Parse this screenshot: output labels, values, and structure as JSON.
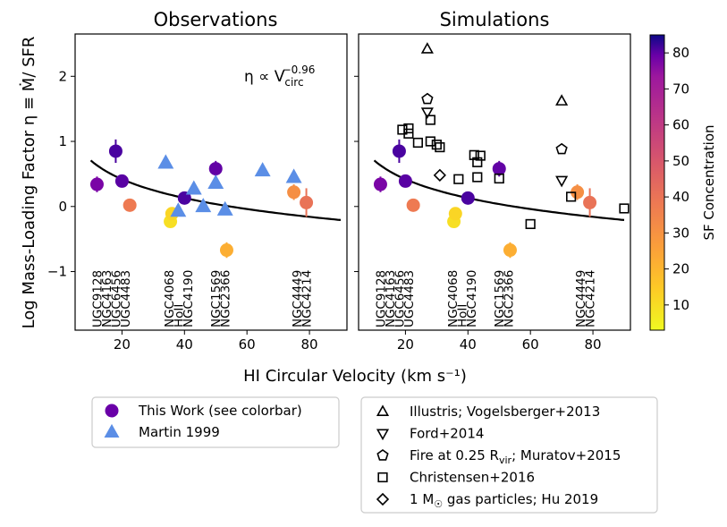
{
  "figure": {
    "ylabel": "Log Mass-Loading Factor η ≡ Ṁ/ SFR",
    "xlabel": "HI Circular Velocity (km s⁻¹)",
    "colorbar_label": "SF Concentration",
    "scaling_relation": "η ∝ V_circ^−0.96"
  },
  "chart_data": [
    {
      "type": "scatter",
      "title": "Observations",
      "xlim": [
        5,
        92
      ],
      "ylim": [
        -1.9,
        2.65
      ],
      "xticks": [
        20,
        40,
        60,
        80
      ],
      "yticks": [
        -1,
        0,
        1,
        2
      ],
      "annotation": "η ∝ V_circ^−0.96",
      "fit_line": {
        "relation": "eta proportional to Vcirc^-0.96",
        "anchor_x": 40,
        "anchor_y": 0.13,
        "x_range": [
          10,
          90
        ]
      },
      "series": [
        {
          "name": "This Work (see colorbar)",
          "marker": "circle",
          "points": [
            {
              "x": 12,
              "y": 0.34,
              "c": 65,
              "err": 0.12
            },
            {
              "x": 18,
              "y": 0.85,
              "c": 75,
              "err": 0.18
            },
            {
              "x": 20,
              "y": 0.39,
              "c": 72,
              "err": 0.05
            },
            {
              "x": 22.5,
              "y": 0.02,
              "c": 30,
              "err": 0.04
            },
            {
              "x": 35.5,
              "y": -0.23,
              "c": 8,
              "err": 0.08
            },
            {
              "x": 36,
              "y": -0.11,
              "c": 10,
              "err": 0.06
            },
            {
              "x": 40,
              "y": 0.13,
              "c": 75,
              "err": 0.04
            },
            {
              "x": 50,
              "y": 0.58,
              "c": 70,
              "err": 0.12
            },
            {
              "x": 53.5,
              "y": -0.67,
              "c": 18,
              "err": 0.12
            },
            {
              "x": 75,
              "y": 0.22,
              "c": 25,
              "err": 0.12
            },
            {
              "x": 79,
              "y": 0.06,
              "c": 32,
              "err": 0.22
            }
          ]
        },
        {
          "name": "Martin 1999",
          "marker": "triangle",
          "color": "#5b8ee6",
          "points": [
            {
              "x": 34,
              "y": 0.67
            },
            {
              "x": 38,
              "y": -0.07
            },
            {
              "x": 43,
              "y": 0.27
            },
            {
              "x": 46,
              "y": 0.0
            },
            {
              "x": 50,
              "y": 0.36
            },
            {
              "x": 53,
              "y": -0.05
            },
            {
              "x": 65,
              "y": 0.55
            },
            {
              "x": 75,
              "y": 0.45
            }
          ]
        }
      ],
      "galaxy_labels": [
        {
          "x": 12,
          "label": "UGC9128"
        },
        {
          "x": 15,
          "label": "NGC4163"
        },
        {
          "x": 18,
          "label": "UGC6456"
        },
        {
          "x": 21,
          "label": "UGC4483"
        },
        {
          "x": 35,
          "label": "NGC4068"
        },
        {
          "x": 38,
          "label": "HoII"
        },
        {
          "x": 41,
          "label": "NGC4190"
        },
        {
          "x": 50,
          "label": "NGC1569"
        },
        {
          "x": 53,
          "label": "NGC2366"
        },
        {
          "x": 76,
          "label": "NGC4449"
        },
        {
          "x": 79,
          "label": "NGC4214"
        }
      ]
    },
    {
      "type": "scatter",
      "title": "Simulations",
      "xlim": [
        5,
        92
      ],
      "ylim": [
        -1.9,
        2.65
      ],
      "xticks": [
        20,
        40,
        60,
        80
      ],
      "yticks": [
        -1,
        0,
        1,
        2
      ],
      "fit_line": {
        "relation": "eta proportional to Vcirc^-0.96",
        "anchor_x": 40,
        "anchor_y": 0.13,
        "x_range": [
          10,
          90
        ]
      },
      "series": [
        {
          "name": "This Work (see colorbar)",
          "marker": "circle",
          "points": [
            {
              "x": 12,
              "y": 0.34,
              "c": 65,
              "err": 0.12
            },
            {
              "x": 18,
              "y": 0.85,
              "c": 75,
              "err": 0.18
            },
            {
              "x": 20,
              "y": 0.39,
              "c": 72,
              "err": 0.05
            },
            {
              "x": 22.5,
              "y": 0.02,
              "c": 30,
              "err": 0.04
            },
            {
              "x": 35.5,
              "y": -0.23,
              "c": 8,
              "err": 0.08
            },
            {
              "x": 36,
              "y": -0.11,
              "c": 10,
              "err": 0.06
            },
            {
              "x": 40,
              "y": 0.13,
              "c": 75,
              "err": 0.04
            },
            {
              "x": 50,
              "y": 0.58,
              "c": 70,
              "err": 0.12
            },
            {
              "x": 53.5,
              "y": -0.67,
              "c": 18,
              "err": 0.12
            },
            {
              "x": 75,
              "y": 0.22,
              "c": 25,
              "err": 0.12
            },
            {
              "x": 79,
              "y": 0.06,
              "c": 32,
              "err": 0.22
            }
          ]
        },
        {
          "name": "Illustris; Vogelsberger+2013",
          "marker": "triangle-up",
          "points": [
            {
              "x": 27,
              "y": 2.42
            },
            {
              "x": 70,
              "y": 1.62
            }
          ]
        },
        {
          "name": "Ford+2014",
          "marker": "triangle-down",
          "points": [
            {
              "x": 27,
              "y": 1.45
            },
            {
              "x": 70,
              "y": 0.4
            }
          ]
        },
        {
          "name": "Fire at 0.25 R_vir; Muratov+2015",
          "marker": "pentagon",
          "points": [
            {
              "x": 27,
              "y": 1.65
            },
            {
              "x": 70,
              "y": 0.88
            }
          ]
        },
        {
          "name": "Christensen+2016",
          "marker": "square",
          "points": [
            {
              "x": 19,
              "y": 1.18
            },
            {
              "x": 21,
              "y": 1.2
            },
            {
              "x": 21,
              "y": 1.12
            },
            {
              "x": 24,
              "y": 0.98
            },
            {
              "x": 28,
              "y": 1.33
            },
            {
              "x": 28,
              "y": 1.0
            },
            {
              "x": 30,
              "y": 0.95
            },
            {
              "x": 31,
              "y": 0.91
            },
            {
              "x": 37,
              "y": 0.42
            },
            {
              "x": 42,
              "y": 0.79
            },
            {
              "x": 43,
              "y": 0.68
            },
            {
              "x": 44,
              "y": 0.78
            },
            {
              "x": 43,
              "y": 0.45
            },
            {
              "x": 50,
              "y": 0.43
            },
            {
              "x": 60,
              "y": -0.27
            },
            {
              "x": 73,
              "y": 0.15
            },
            {
              "x": 90,
              "y": -0.03
            }
          ]
        },
        {
          "name": "1 M_sun gas particles; Hu 2019",
          "marker": "diamond",
          "points": [
            {
              "x": 31,
              "y": 0.48
            }
          ]
        }
      ],
      "galaxy_labels": [
        {
          "x": 12,
          "label": "UGC9128"
        },
        {
          "x": 15,
          "label": "NGC4163"
        },
        {
          "x": 18,
          "label": "UGC6456"
        },
        {
          "x": 21,
          "label": "UGC4483"
        },
        {
          "x": 35,
          "label": "NGC4068"
        },
        {
          "x": 38,
          "label": "HoII"
        },
        {
          "x": 41,
          "label": "NGC4190"
        },
        {
          "x": 50,
          "label": "NGC1569"
        },
        {
          "x": 53,
          "label": "NGC2366"
        },
        {
          "x": 76,
          "label": "NGC4449"
        },
        {
          "x": 79,
          "label": "NGC4214"
        }
      ]
    }
  ],
  "colorbar": {
    "label": "SF Concentration",
    "range": [
      3,
      85
    ],
    "ticks": [
      10,
      20,
      30,
      40,
      50,
      60,
      70,
      80
    ],
    "colormap": "plasma"
  },
  "legend_left": [
    {
      "marker": "circle",
      "color": "#6a00a8",
      "label": "This Work (see colorbar)"
    },
    {
      "marker": "triangle",
      "color": "#5b8ee6",
      "label": "Martin 1999"
    }
  ],
  "legend_right": [
    {
      "marker": "triangle-up",
      "label": "Illustris; Vogelsberger+2013"
    },
    {
      "marker": "triangle-down",
      "label": "Ford+2014"
    },
    {
      "marker": "pentagon",
      "label": "Fire at 0.25 R_vir; Muratov+2015"
    },
    {
      "marker": "square",
      "label": "Christensen+2016"
    },
    {
      "marker": "diamond",
      "label": "1 M_sun gas particles; Hu 2019"
    }
  ]
}
